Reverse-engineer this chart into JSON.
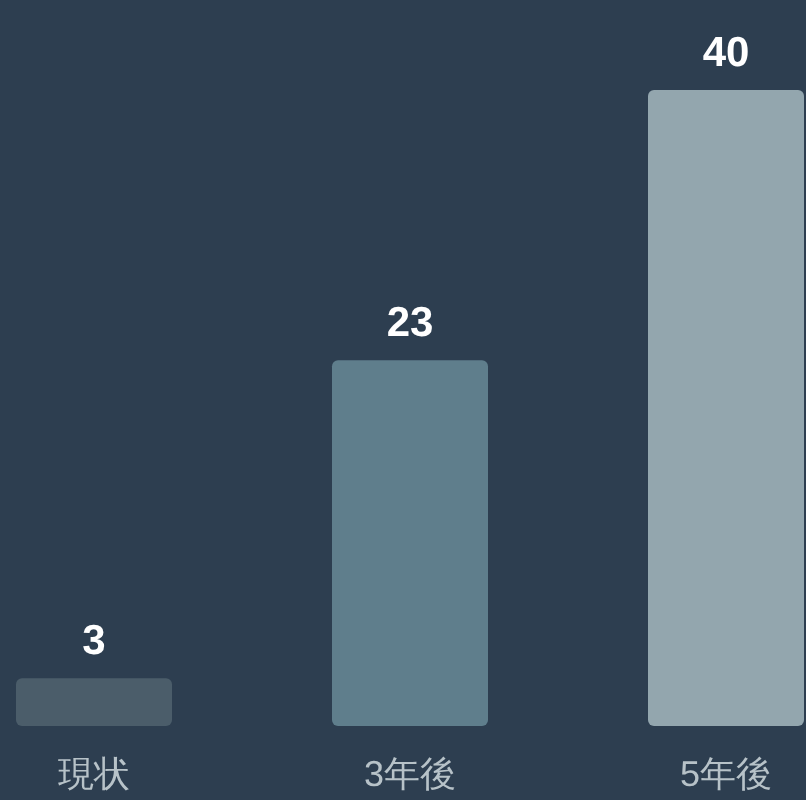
{
  "chart_data": {
    "type": "bar",
    "categories": [
      "現状",
      "3年後",
      "5年後"
    ],
    "values": [
      3,
      23,
      40
    ],
    "colors": [
      "#4b5d6a",
      "#5f7e8c",
      "#93a6ae"
    ],
    "data_labels": true
  }
}
